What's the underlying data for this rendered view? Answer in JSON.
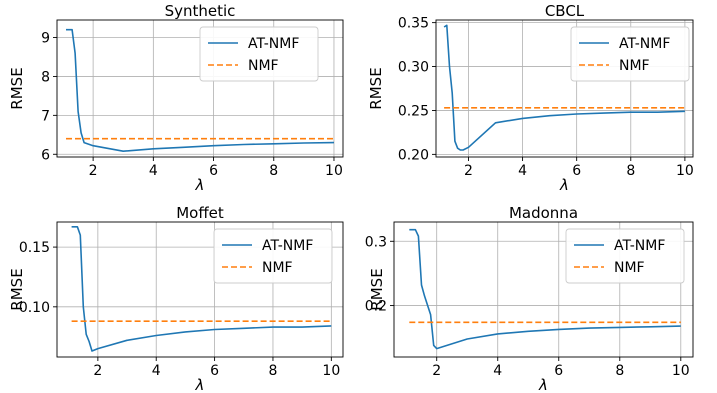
{
  "chart_data": [
    {
      "type": "line",
      "title": "Synthetic",
      "xlabel": "λ",
      "ylabel": "RMSE",
      "xlim": [
        0.8,
        10.3
      ],
      "ylim": [
        5.93,
        9.45
      ],
      "xticks": [
        2,
        4,
        6,
        8,
        10
      ],
      "yticks": [
        6,
        7,
        8,
        9
      ],
      "ytick_labels": [
        "6",
        "7",
        "8",
        "9"
      ],
      "grid": true,
      "legend": "upper right",
      "series": [
        {
          "name": "AT-NMF",
          "color": "#1f77b4",
          "style": "solid",
          "x": [
            1.1,
            1.3,
            1.4,
            1.5,
            1.6,
            1.7,
            2,
            3,
            4,
            5,
            6,
            7,
            8,
            9,
            10
          ],
          "y": [
            9.2,
            9.2,
            8.6,
            7.1,
            6.55,
            6.3,
            6.22,
            6.08,
            6.14,
            6.18,
            6.22,
            6.25,
            6.27,
            6.29,
            6.3
          ]
        },
        {
          "name": "NMF",
          "color": "#ff7f0e",
          "style": "dashed",
          "x": [
            1.1,
            10
          ],
          "y": [
            6.4,
            6.4
          ]
        }
      ]
    },
    {
      "type": "line",
      "title": "CBCL",
      "xlabel": "λ",
      "ylabel": "RMSE",
      "xlim": [
        0.8,
        10.3
      ],
      "ylim": [
        0.197,
        0.353
      ],
      "xticks": [
        2,
        4,
        6,
        8,
        10
      ],
      "yticks": [
        0.2,
        0.25,
        0.3,
        0.35
      ],
      "ytick_labels": [
        "0.20",
        "0.25",
        "0.30",
        "0.35"
      ],
      "grid": true,
      "legend": "upper right",
      "series": [
        {
          "name": "AT-NMF",
          "color": "#1f77b4",
          "style": "solid",
          "x": [
            1.1,
            1.2,
            1.3,
            1.4,
            1.5,
            1.6,
            1.7,
            1.8,
            2,
            3,
            4,
            5,
            6,
            7,
            8,
            9,
            10
          ],
          "y": [
            0.345,
            0.347,
            0.3,
            0.27,
            0.215,
            0.207,
            0.205,
            0.205,
            0.208,
            0.236,
            0.241,
            0.244,
            0.246,
            0.247,
            0.248,
            0.248,
            0.249
          ]
        },
        {
          "name": "NMF",
          "color": "#ff7f0e",
          "style": "dashed",
          "x": [
            1.1,
            10
          ],
          "y": [
            0.253,
            0.253
          ]
        }
      ]
    },
    {
      "type": "line",
      "title": "Moffet",
      "xlabel": "λ",
      "ylabel": "RMSE",
      "xlim": [
        0.6,
        10.4
      ],
      "ylim": [
        0.058,
        0.171
      ],
      "xticks": [
        2,
        4,
        6,
        8,
        10
      ],
      "yticks": [
        0.1,
        0.15
      ],
      "ytick_labels": [
        "0.10",
        "0.15"
      ],
      "grid": true,
      "legend": "upper right",
      "series": [
        {
          "name": "AT-NMF",
          "color": "#1f77b4",
          "style": "solid",
          "x": [
            1.1,
            1.3,
            1.4,
            1.5,
            1.6,
            1.7,
            1.8,
            2,
            3,
            4,
            5,
            6,
            7,
            8,
            9,
            10
          ],
          "y": [
            0.167,
            0.167,
            0.16,
            0.1,
            0.077,
            0.071,
            0.063,
            0.065,
            0.072,
            0.076,
            0.079,
            0.081,
            0.082,
            0.083,
            0.083,
            0.084
          ]
        },
        {
          "name": "NMF",
          "color": "#ff7f0e",
          "style": "dashed",
          "x": [
            1.1,
            10
          ],
          "y": [
            0.088,
            0.088
          ]
        }
      ]
    },
    {
      "type": "line",
      "title": "Madonna",
      "xlabel": "λ",
      "ylabel": "RMSE",
      "xlim": [
        0.6,
        10.4
      ],
      "ylim": [
        0.12,
        0.33
      ],
      "xticks": [
        2,
        4,
        6,
        8,
        10
      ],
      "yticks": [
        0.2,
        0.3
      ],
      "ytick_labels": [
        "0.2",
        "0.3"
      ],
      "grid": true,
      "legend": "upper right",
      "series": [
        {
          "name": "AT-NMF",
          "color": "#1f77b4",
          "style": "solid",
          "x": [
            1.1,
            1.3,
            1.4,
            1.5,
            1.6,
            1.8,
            1.9,
            2,
            3,
            4,
            5,
            6,
            7,
            8,
            9,
            10
          ],
          "y": [
            0.318,
            0.318,
            0.308,
            0.232,
            0.215,
            0.186,
            0.138,
            0.133,
            0.148,
            0.156,
            0.16,
            0.163,
            0.165,
            0.166,
            0.167,
            0.168
          ]
        },
        {
          "name": "NMF",
          "color": "#ff7f0e",
          "style": "dashed",
          "x": [
            1.1,
            10
          ],
          "y": [
            0.174,
            0.174
          ]
        }
      ]
    }
  ]
}
